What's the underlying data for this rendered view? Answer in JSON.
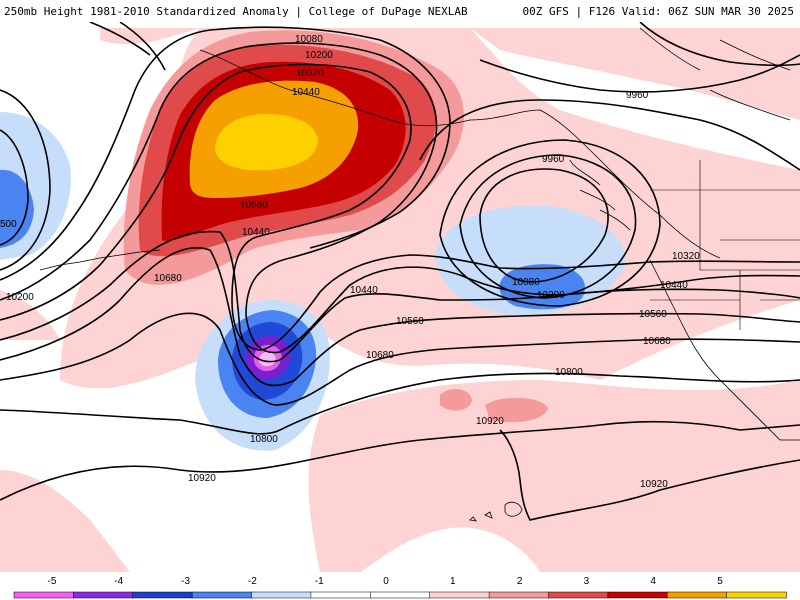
{
  "header": {
    "left": "250mb Height 1981-2010 Standardized Anomaly | College of DuPage NEXLAB",
    "right": "00Z GFS | F126 Valid: 06Z SUN MAR 30 2025"
  },
  "colors": {
    "neg5": "#e060e8",
    "neg4": "#7a1fd0",
    "neg3": "#1f49d6",
    "neg2": "#4a84f0",
    "neg1": "#c6defa",
    "pos1": "#fdd3d3",
    "pos2": "#f59a9a",
    "pos3": "#e04a4a",
    "pos4": "#c50000",
    "pos5": "#f5a000",
    "pos6": "#ffd000",
    "core_neg": "#f7b8f5"
  },
  "contour_labels": [
    {
      "text": "10080"
    },
    {
      "text": "10200"
    },
    {
      "text": "10320"
    },
    {
      "text": "10440"
    },
    {
      "text": "9960"
    },
    {
      "text": "9960"
    },
    {
      "text": "10560"
    },
    {
      "text": "10440"
    },
    {
      "text": "10680"
    },
    {
      "text": "10440"
    },
    {
      "text": "10560"
    },
    {
      "text": "10680"
    },
    {
      "text": "10800"
    },
    {
      "text": "10920"
    },
    {
      "text": "10920"
    },
    {
      "text": "10920"
    },
    {
      "text": "10080"
    },
    {
      "text": "10200"
    },
    {
      "text": "10320"
    },
    {
      "text": "10440"
    },
    {
      "text": "10560"
    },
    {
      "text": "10680"
    },
    {
      "text": "10800"
    },
    {
      "text": "10200"
    },
    {
      "text": "500"
    }
  ],
  "legend": {
    "ticks": [
      "-5",
      "-4",
      "-3",
      "-2",
      "-1",
      "0",
      "1",
      "2",
      "3",
      "4",
      "5"
    ],
    "bands": [
      "#f060f0",
      "#8a2be2",
      "#1c3fcf",
      "#4a84f0",
      "#c6defa",
      "#ffffff",
      "#ffffff",
      "#fdd3d3",
      "#f59a9a",
      "#e04a4a",
      "#c50000",
      "#f5a000",
      "#ffd000"
    ]
  }
}
